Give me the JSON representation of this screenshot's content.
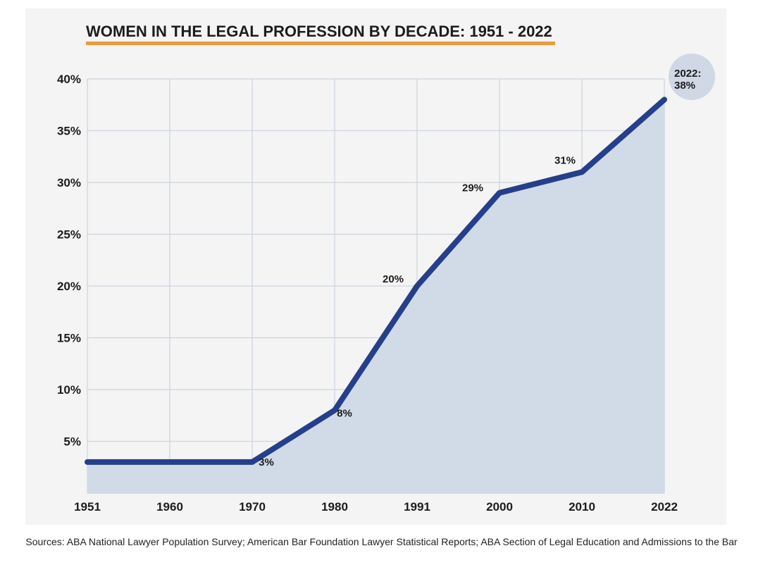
{
  "chart_data": {
    "type": "area",
    "title": "WOMEN IN THE LEGAL PROFESSION BY DECADE: 1951 - 2022",
    "categories": [
      "1951",
      "1960",
      "1970",
      "1980",
      "1991",
      "2000",
      "2010",
      "2022"
    ],
    "values": [
      3,
      3,
      3,
      8,
      20,
      29,
      31,
      38
    ],
    "data_labels": [
      {
        "index": 2,
        "text": "3%"
      },
      {
        "index": 3,
        "text": "8%"
      },
      {
        "index": 4,
        "text": "20%"
      },
      {
        "index": 5,
        "text": "29%"
      },
      {
        "index": 6,
        "text": "31%"
      },
      {
        "index": 7,
        "text": "2022:\n38%",
        "callout": true
      }
    ],
    "yticks": [
      "5%",
      "10%",
      "15%",
      "20%",
      "25%",
      "30%",
      "35%",
      "40%"
    ],
    "ylim": [
      0,
      40
    ],
    "xlabel": "",
    "ylabel": "",
    "grid": true,
    "colors": {
      "line": "#263f8a",
      "fill": "#d1dae7",
      "grid": "#cdd3de",
      "title_underline": "#ef9a39",
      "callout": "#d0d8e6",
      "panel": "#f4f4f4"
    }
  },
  "sources": "Sources: ABA National Lawyer Population Survey; American Bar Foundation Lawyer Statistical Reports; ABA Section of Legal Education and Admissions to the Bar"
}
